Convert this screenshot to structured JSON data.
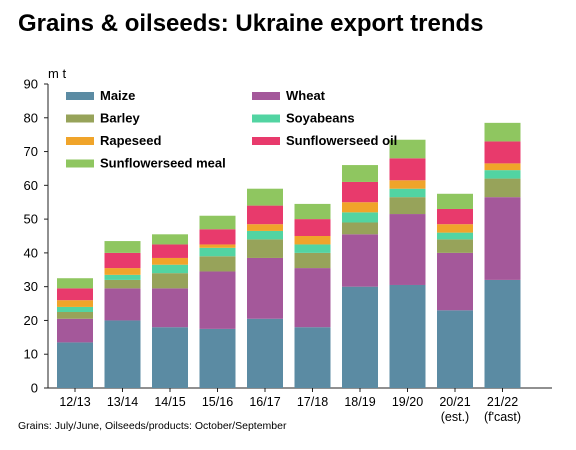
{
  "title": "Grains & oilseeds: Ukraine export trends",
  "footnote": "Grains: July/June, Oilseeds/products: October/September",
  "chart_data": {
    "type": "bar",
    "stacked": true,
    "unit_label": "m t",
    "categories": [
      [
        "12/13"
      ],
      [
        "13/14"
      ],
      [
        "14/15"
      ],
      [
        "15/16"
      ],
      [
        "16/17"
      ],
      [
        "17/18"
      ],
      [
        "18/19"
      ],
      [
        "19/20"
      ],
      [
        "20/21",
        "(est.)"
      ],
      [
        "21/22",
        "(f'cast)"
      ]
    ],
    "ylim": [
      0,
      90
    ],
    "yticks": [
      0,
      10,
      20,
      30,
      40,
      50,
      60,
      70,
      80,
      90
    ],
    "grid": false,
    "legend_placement": "top, inside plot area, two columns",
    "series": [
      {
        "name": "Maize",
        "color": "#5b8ba3",
        "values": [
          13.5,
          20.0,
          18.0,
          17.5,
          20.5,
          18.0,
          30.0,
          30.5,
          23.0,
          32.0
        ]
      },
      {
        "name": "Wheat",
        "color": "#a4589a",
        "values": [
          7.0,
          9.5,
          11.5,
          17.0,
          18.0,
          17.5,
          15.5,
          21.0,
          17.0,
          24.5
        ]
      },
      {
        "name": "Barley",
        "color": "#97a35a",
        "values": [
          2.0,
          2.5,
          4.5,
          4.5,
          5.5,
          4.5,
          3.5,
          5.0,
          4.0,
          5.5
        ]
      },
      {
        "name": "Soyabeans",
        "color": "#52d4a2",
        "values": [
          1.5,
          1.5,
          2.5,
          2.5,
          2.5,
          2.5,
          3.0,
          2.5,
          2.0,
          2.5
        ]
      },
      {
        "name": "Rapeseed",
        "color": "#f0a42a",
        "values": [
          2.0,
          2.0,
          2.0,
          1.0,
          2.0,
          2.5,
          3.0,
          2.5,
          2.5,
          2.0
        ]
      },
      {
        "name": "Sunflowerseed oil",
        "color": "#e83a6c",
        "values": [
          3.5,
          4.5,
          4.0,
          4.5,
          5.5,
          5.0,
          6.0,
          6.5,
          4.5,
          6.5
        ]
      },
      {
        "name": "Sunflowerseed meal",
        "color": "#8fc660",
        "values": [
          3.0,
          3.5,
          3.0,
          4.0,
          5.0,
          4.5,
          5.0,
          5.5,
          4.5,
          5.5
        ]
      }
    ]
  }
}
